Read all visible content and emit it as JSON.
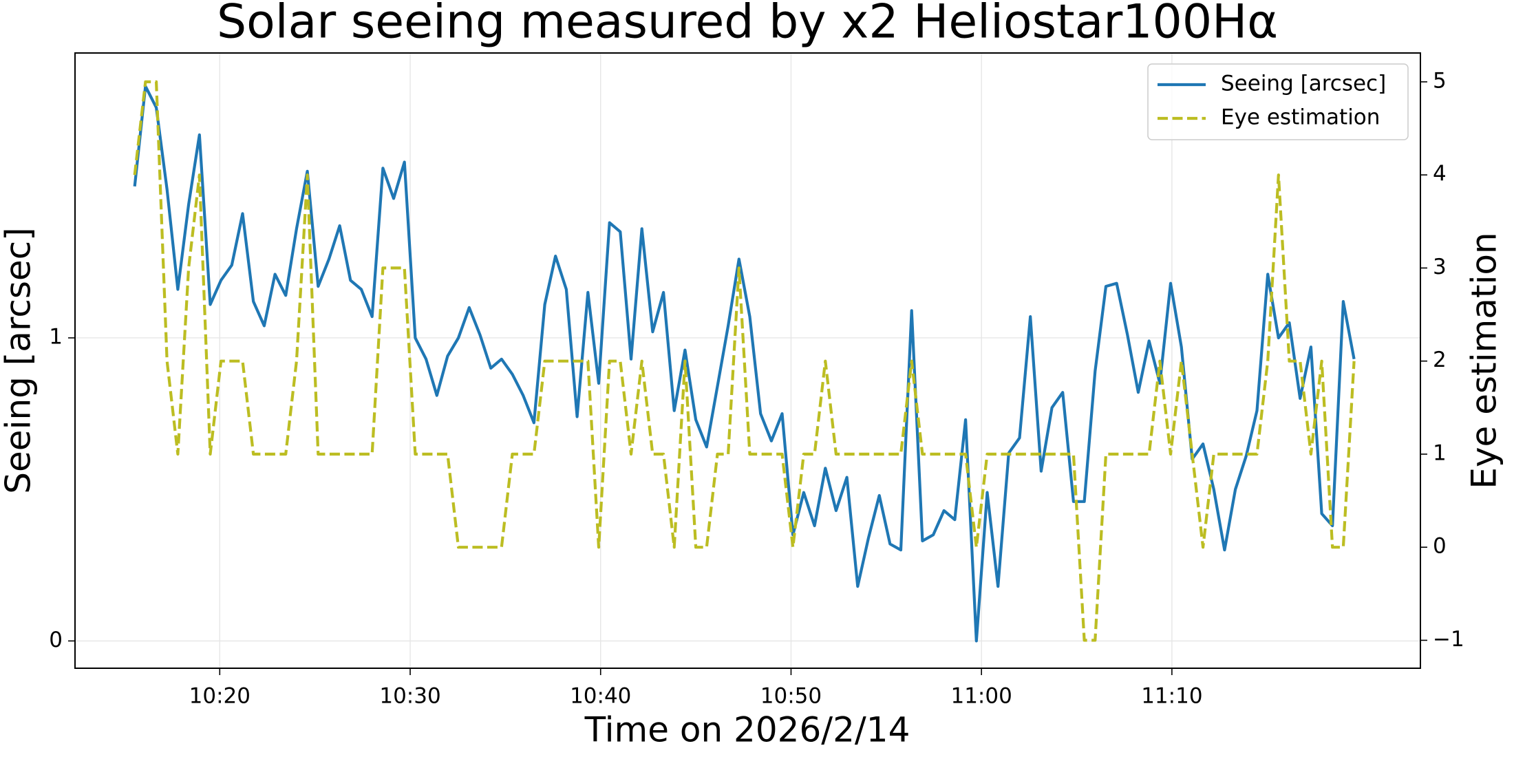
{
  "chart_data": {
    "type": "line",
    "title": "Solar seeing measured by x2 Heliostar100Hα",
    "xlabel": "Time on 2026/2/14",
    "ylabel": "Seeing [arcsec]",
    "y2label": "Eye estimation",
    "x": [
      "10:15:32",
      "10:16:06",
      "10:16:40",
      "10:17:14",
      "10:17:48",
      "10:18:22",
      "10:18:56",
      "10:19:30",
      "10:20:04",
      "10:20:38",
      "10:21:12",
      "10:21:46",
      "10:22:20",
      "10:22:54",
      "10:23:28",
      "10:24:02",
      "10:24:36",
      "10:25:10",
      "10:25:44",
      "10:26:18",
      "10:26:52",
      "10:27:26",
      "10:28:00",
      "10:28:34",
      "10:29:08",
      "10:29:42",
      "10:30:16",
      "10:30:50",
      "10:31:24",
      "10:31:58",
      "10:32:32",
      "10:33:06",
      "10:33:40",
      "10:34:14",
      "10:34:48",
      "10:35:22",
      "10:35:56",
      "10:36:30",
      "10:37:04",
      "10:37:38",
      "10:38:12",
      "10:38:46",
      "10:39:20",
      "10:39:54",
      "10:40:28",
      "10:41:02",
      "10:41:36",
      "10:42:10",
      "10:42:44",
      "10:43:18",
      "10:43:52",
      "10:44:26",
      "10:45:00",
      "10:45:34",
      "10:46:08",
      "10:46:42",
      "10:47:16",
      "10:47:50",
      "10:48:24",
      "10:48:58",
      "10:49:32",
      "10:50:06",
      "10:50:40",
      "10:51:14",
      "10:51:48",
      "10:52:22",
      "10:52:56",
      "10:53:30",
      "10:54:04",
      "10:54:38",
      "10:55:12",
      "10:55:46",
      "10:56:20",
      "10:56:54",
      "10:57:28",
      "10:58:02",
      "10:58:36",
      "10:59:10",
      "10:59:44",
      "11:00:18",
      "11:00:52",
      "11:01:26",
      "11:02:00",
      "11:02:34",
      "11:03:08",
      "11:03:42",
      "11:04:16",
      "11:04:50",
      "11:05:24",
      "11:05:58",
      "11:06:32",
      "11:07:06",
      "11:07:40",
      "11:08:14",
      "11:08:48",
      "11:09:22",
      "11:09:56",
      "11:10:30",
      "11:11:04",
      "11:11:38",
      "11:12:12",
      "11:12:46",
      "11:13:20",
      "11:13:54",
      "11:14:28",
      "11:15:02",
      "11:15:36",
      "11:16:10",
      "11:16:44",
      "11:17:18",
      "11:17:52",
      "11:18:26",
      "11:19:00",
      "11:19:34"
    ],
    "series": [
      {
        "name": "Seeing [arcsec]",
        "color": "#1f77b4",
        "linestyle": "solid",
        "axis": "y",
        "values": [
          1.5,
          1.83,
          1.76,
          1.49,
          1.16,
          1.44,
          1.67,
          1.11,
          1.19,
          1.24,
          1.41,
          1.12,
          1.04,
          1.21,
          1.14,
          1.36,
          1.55,
          1.17,
          1.26,
          1.37,
          1.19,
          1.16,
          1.07,
          1.56,
          1.46,
          1.58,
          1.0,
          0.93,
          0.81,
          0.94,
          1.0,
          1.1,
          1.01,
          0.9,
          0.93,
          0.88,
          0.81,
          0.72,
          1.11,
          1.27,
          1.16,
          0.74,
          1.15,
          0.85,
          1.38,
          1.35,
          0.93,
          1.36,
          1.02,
          1.15,
          0.76,
          0.96,
          0.73,
          0.64,
          0.84,
          1.04,
          1.26,
          1.07,
          0.75,
          0.66,
          0.75,
          0.35,
          0.49,
          0.38,
          0.57,
          0.43,
          0.54,
          0.18,
          0.34,
          0.48,
          0.32,
          0.3,
          1.09,
          0.33,
          0.35,
          0.43,
          0.4,
          0.73,
          0.0,
          0.49,
          0.18,
          0.62,
          0.67,
          1.07,
          0.56,
          0.77,
          0.82,
          0.46,
          0.46,
          0.89,
          1.17,
          1.18,
          1.01,
          0.82,
          0.99,
          0.85,
          1.18,
          0.97,
          0.6,
          0.65,
          0.5,
          0.3,
          0.5,
          0.61,
          0.76,
          1.21,
          1.0,
          1.05,
          0.8,
          0.97,
          0.42,
          0.38,
          1.12,
          0.93
        ]
      },
      {
        "name": "Eye estimation",
        "color": "#bcbd22",
        "linestyle": "dashed",
        "axis": "y2",
        "values": [
          4,
          5,
          5,
          2,
          1,
          3,
          4,
          1,
          2,
          2,
          2,
          1,
          1,
          1,
          1,
          2,
          4,
          1,
          1,
          1,
          1,
          1,
          1,
          3,
          3,
          3,
          1,
          1,
          1,
          1,
          0,
          0,
          0,
          0,
          0,
          1,
          1,
          1,
          2,
          2,
          2,
          2,
          2,
          0,
          2,
          2,
          1,
          2,
          1,
          1,
          0,
          2,
          0,
          0,
          1,
          1,
          3,
          1,
          1,
          1,
          1,
          0,
          1,
          1,
          2,
          1,
          1,
          1,
          1,
          1,
          1,
          1,
          2,
          1,
          1,
          1,
          1,
          1,
          0,
          1,
          1,
          1,
          1,
          1,
          1,
          1,
          1,
          1,
          -1,
          -1,
          1,
          1,
          1,
          1,
          1,
          2,
          1,
          2,
          1,
          0,
          1,
          1,
          1,
          1,
          1,
          2,
          4,
          2,
          2,
          1,
          2,
          0,
          0,
          2
        ]
      }
    ],
    "xlim": [
      "10:12:24",
      "11:23:03"
    ],
    "xticks": [
      "10:20",
      "10:30",
      "10:40",
      "10:50",
      "11:00",
      "11:10"
    ],
    "ylim": [
      -0.09,
      1.94
    ],
    "yticks": [
      0,
      1
    ],
    "y2lim": [
      -1.3,
      5.31
    ],
    "y2ticks": [
      {
        "value": -1,
        "label": "−1"
      },
      0,
      1,
      2,
      3,
      4,
      5
    ],
    "grid": true,
    "legend": "upper right"
  }
}
